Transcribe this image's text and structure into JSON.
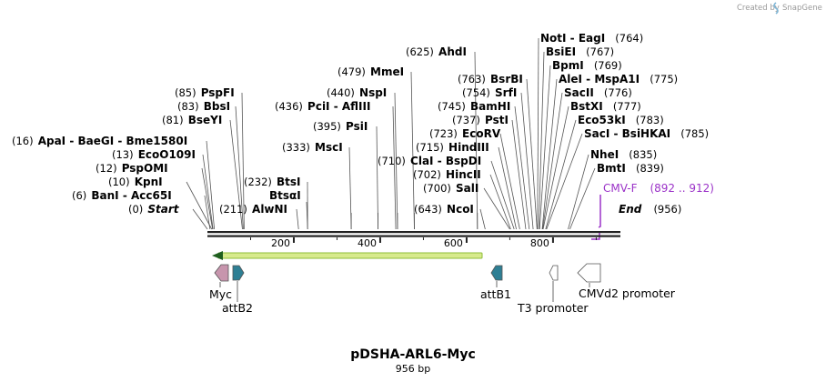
{
  "credit": {
    "prefix": "Created by",
    "brand": "SnapGene"
  },
  "map": {
    "total_bp": 956,
    "ticks": [
      "200",
      "400",
      "600",
      "800"
    ],
    "title": "pDSHA-ARL6-Myc",
    "subtitle": "956 bp"
  },
  "sites": [
    {
      "pos": "(0)",
      "name": "Start",
      "bp": 0,
      "italic": true
    },
    {
      "pos": "(6)",
      "name": "BanI  -  Acc65I",
      "bp": 6
    },
    {
      "pos": "(10)",
      "name": "KpnI",
      "bp": 10
    },
    {
      "pos": "(12)",
      "name": "PspOMI",
      "bp": 12
    },
    {
      "pos": "(13)",
      "name": "EcoO109I",
      "bp": 13
    },
    {
      "pos": "(16)",
      "name": "ApaI  -  BaeGI  -  Bme1580I",
      "bp": 16
    },
    {
      "pos": "(81)",
      "name": "BseYI",
      "bp": 81
    },
    {
      "pos": "(83)",
      "name": "BbsI",
      "bp": 83
    },
    {
      "pos": "(85)",
      "name": "PspFI",
      "bp": 85
    },
    {
      "pos": "(211)",
      "name": "AlwNI",
      "bp": 211
    },
    {
      "pos": "",
      "name": "BtsαI",
      "bp": 232
    },
    {
      "pos": "(232)",
      "name": "BtsI",
      "bp": 232
    },
    {
      "pos": "(333)",
      "name": "MscI",
      "bp": 333
    },
    {
      "pos": "(395)",
      "name": "PsiI",
      "bp": 395
    },
    {
      "pos": "(436)",
      "name": "PciI  -  AflIII",
      "bp": 436
    },
    {
      "pos": "(440)",
      "name": "NspI",
      "bp": 440
    },
    {
      "pos": "(479)",
      "name": "MmeI",
      "bp": 479
    },
    {
      "pos": "(625)",
      "name": "AhdI",
      "bp": 625
    },
    {
      "pos": "(643)",
      "name": "NcoI",
      "bp": 643
    },
    {
      "pos": "(700)",
      "name": "SalI",
      "bp": 700
    },
    {
      "pos": "(702)",
      "name": "HincII",
      "bp": 702
    },
    {
      "pos": "(710)",
      "name": "ClaI  -  BspDI",
      "bp": 710
    },
    {
      "pos": "(715)",
      "name": "HindIII",
      "bp": 715
    },
    {
      "pos": "(723)",
      "name": "EcoRV",
      "bp": 723
    },
    {
      "pos": "(737)",
      "name": "PstI",
      "bp": 737
    },
    {
      "pos": "(745)",
      "name": "BamHI",
      "bp": 745
    },
    {
      "pos": "(754)",
      "name": "SrfI",
      "bp": 754
    },
    {
      "pos": "(763)",
      "name": "BsrBI",
      "bp": 763
    },
    {
      "pos": "(764)",
      "name": "NotI  -  EagI",
      "bp": 764
    },
    {
      "pos": "(767)",
      "name": "BsiEI",
      "bp": 767
    },
    {
      "pos": "(769)",
      "name": "BpmI",
      "bp": 769
    },
    {
      "pos": "(775)",
      "name": "AleI  -  MspA1I",
      "bp": 775
    },
    {
      "pos": "(776)",
      "name": "SacII",
      "bp": 776
    },
    {
      "pos": "(777)",
      "name": "BstXI",
      "bp": 777
    },
    {
      "pos": "(783)",
      "name": "Eco53kI",
      "bp": 783
    },
    {
      "pos": "(785)",
      "name": "SacI  -  BsiHKAI",
      "bp": 785
    },
    {
      "pos": "(835)",
      "name": "NheI",
      "bp": 835
    },
    {
      "pos": "(839)",
      "name": "BmtI",
      "bp": 839
    },
    {
      "pos": "(956)",
      "name": "End",
      "bp": 956,
      "italic": true
    }
  ],
  "primer": {
    "name": "CMV-F",
    "range": "(892 .. 912)",
    "color": "#9b32c8"
  },
  "features": [
    {
      "name": "Myc",
      "color": "#c795ad"
    },
    {
      "name": "attB2",
      "color": "#2e7f94"
    },
    {
      "name": "attB1",
      "color": "#2e7f94"
    },
    {
      "name": "T3 promoter",
      "color": "#ffffff"
    },
    {
      "name": "CMVd2 promoter",
      "color": "#ffffff"
    }
  ],
  "orf_color": "#8fbe38"
}
